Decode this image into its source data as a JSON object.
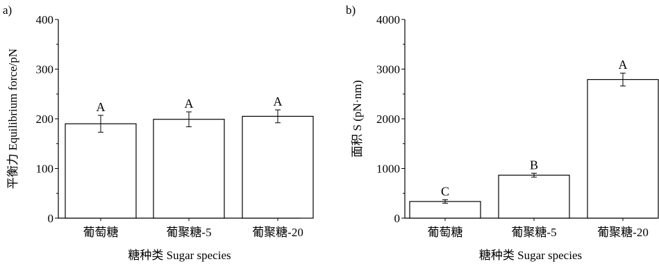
{
  "chart_data": [
    {
      "type": "bar",
      "panel_label": "a)",
      "categories": [
        "葡萄糖",
        "葡聚糖-5",
        "葡聚糖-20"
      ],
      "values": [
        190,
        199,
        205
      ],
      "errors": [
        17,
        15,
        13
      ],
      "significance_labels": [
        "A",
        "A",
        "A"
      ],
      "xlabel": "糖种类 Sugar species",
      "ylabel": "平衡力 Equilibrium force/pN",
      "ylim": [
        0,
        400
      ],
      "yticks": [
        0,
        100,
        200,
        300,
        400
      ],
      "grid": false,
      "bar_color": "#ffffff",
      "edge_color": "#000000"
    },
    {
      "type": "bar",
      "panel_label": "b)",
      "categories": [
        "葡萄糖",
        "葡聚糖-5",
        "葡聚糖-20"
      ],
      "values": [
        335,
        865,
        2790
      ],
      "errors": [
        35,
        40,
        130
      ],
      "significance_labels": [
        "C",
        "B",
        "A"
      ],
      "xlabel": "糖种类 Sugar species",
      "ylabel": "面积 S (pN·nm)",
      "ylim": [
        0,
        4000
      ],
      "yticks": [
        0,
        1000,
        2000,
        3000,
        4000
      ],
      "grid": false,
      "bar_color": "#ffffff",
      "edge_color": "#000000"
    }
  ]
}
